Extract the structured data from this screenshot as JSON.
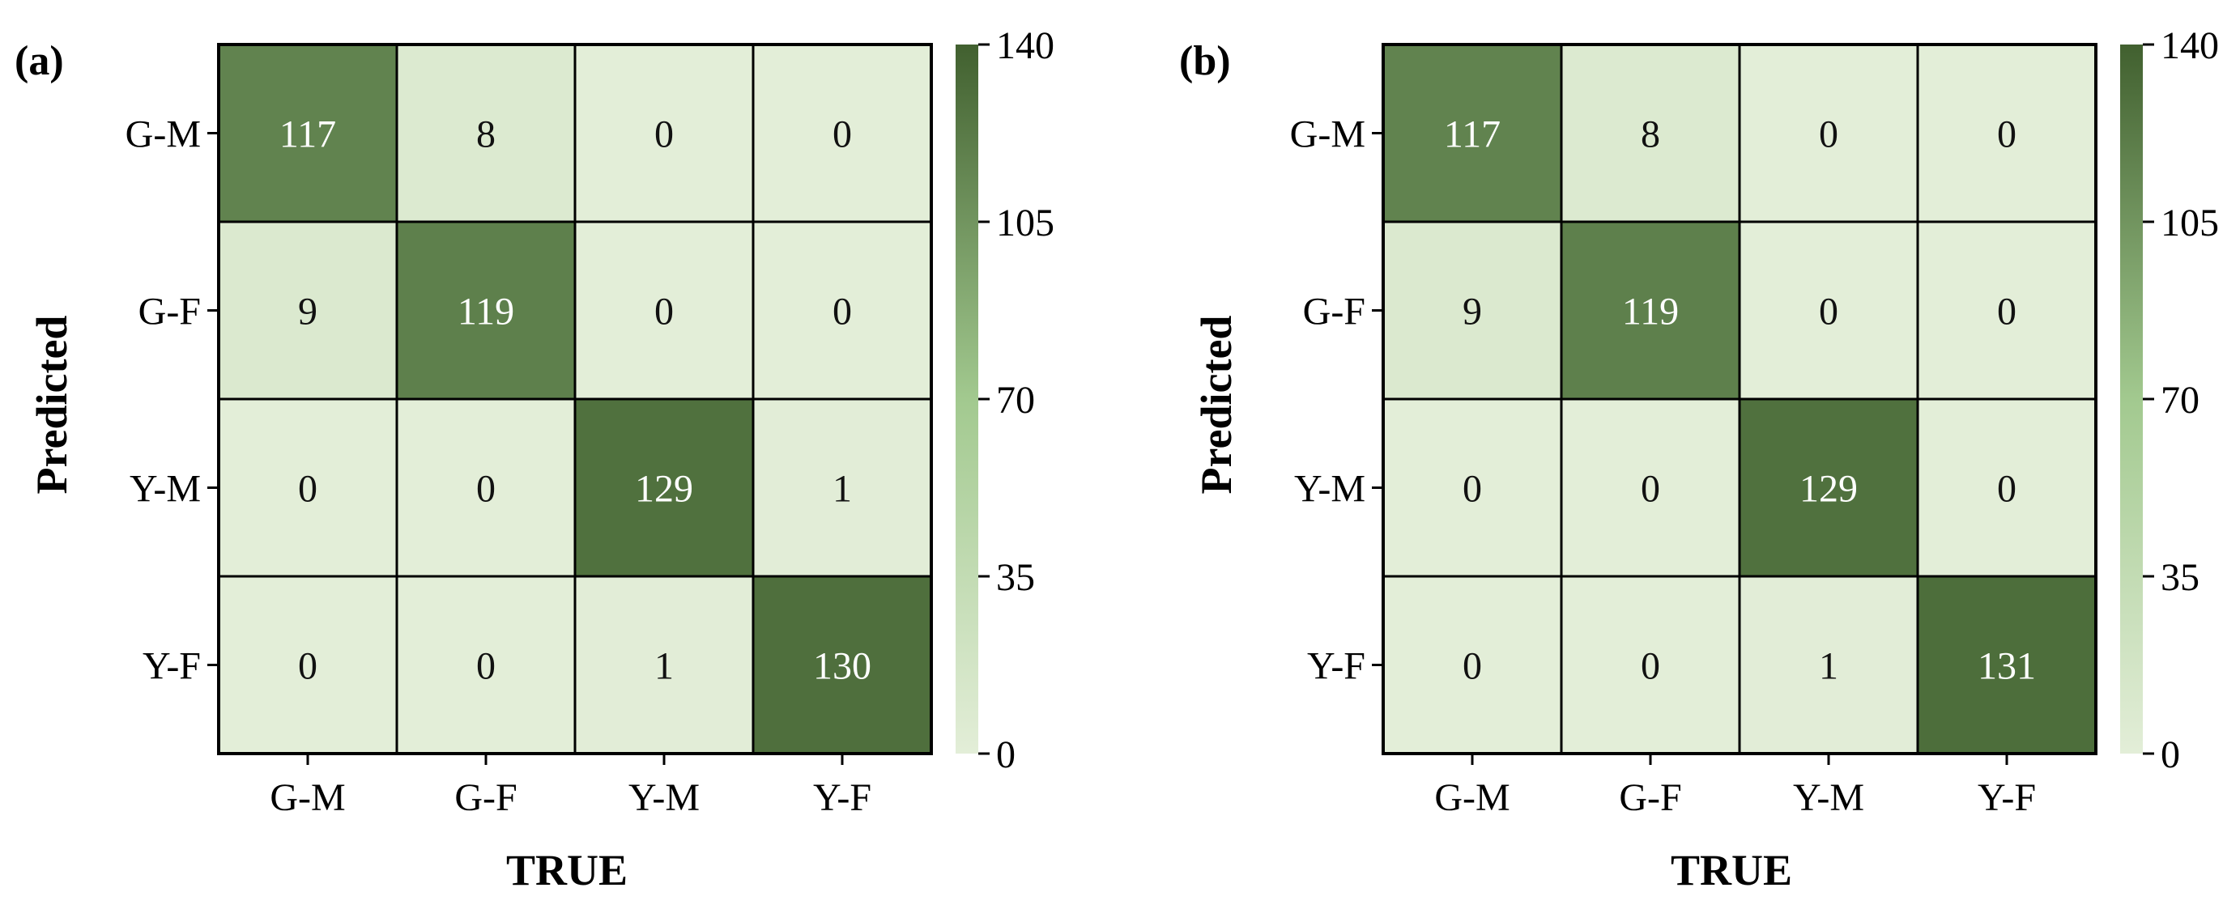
{
  "chart_data": [
    {
      "type": "heatmap",
      "panel_label": "(a)",
      "xlabel": "TRUE",
      "ylabel": "Predicted",
      "x_categories": [
        "G-M",
        "G-F",
        "Y-M",
        "Y-F"
      ],
      "y_categories": [
        "G-M",
        "G-F",
        "Y-M",
        "Y-F"
      ],
      "values": [
        [
          117,
          8,
          0,
          0
        ],
        [
          9,
          119,
          0,
          0
        ],
        [
          0,
          0,
          129,
          1
        ],
        [
          0,
          0,
          1,
          130
        ]
      ],
      "colorbar": {
        "range": [
          0,
          140
        ],
        "ticks": [
          "0",
          "35",
          "70",
          "105",
          "140"
        ],
        "colors": [
          "#e3eed8",
          "#a2c98f",
          "#41602f"
        ]
      }
    },
    {
      "type": "heatmap",
      "panel_label": "(b)",
      "xlabel": "TRUE",
      "ylabel": "Predicted",
      "x_categories": [
        "G-M",
        "G-F",
        "Y-M",
        "Y-F"
      ],
      "y_categories": [
        "G-M",
        "G-F",
        "Y-M",
        "Y-F"
      ],
      "values": [
        [
          117,
          8,
          0,
          0
        ],
        [
          9,
          119,
          0,
          0
        ],
        [
          0,
          0,
          129,
          0
        ],
        [
          0,
          0,
          1,
          131
        ]
      ],
      "colorbar": {
        "range": [
          0,
          140
        ],
        "ticks": [
          "0",
          "35",
          "70",
          "105",
          "140"
        ],
        "colors": [
          "#e3eed8",
          "#a2c98f",
          "#41602f"
        ]
      }
    }
  ]
}
